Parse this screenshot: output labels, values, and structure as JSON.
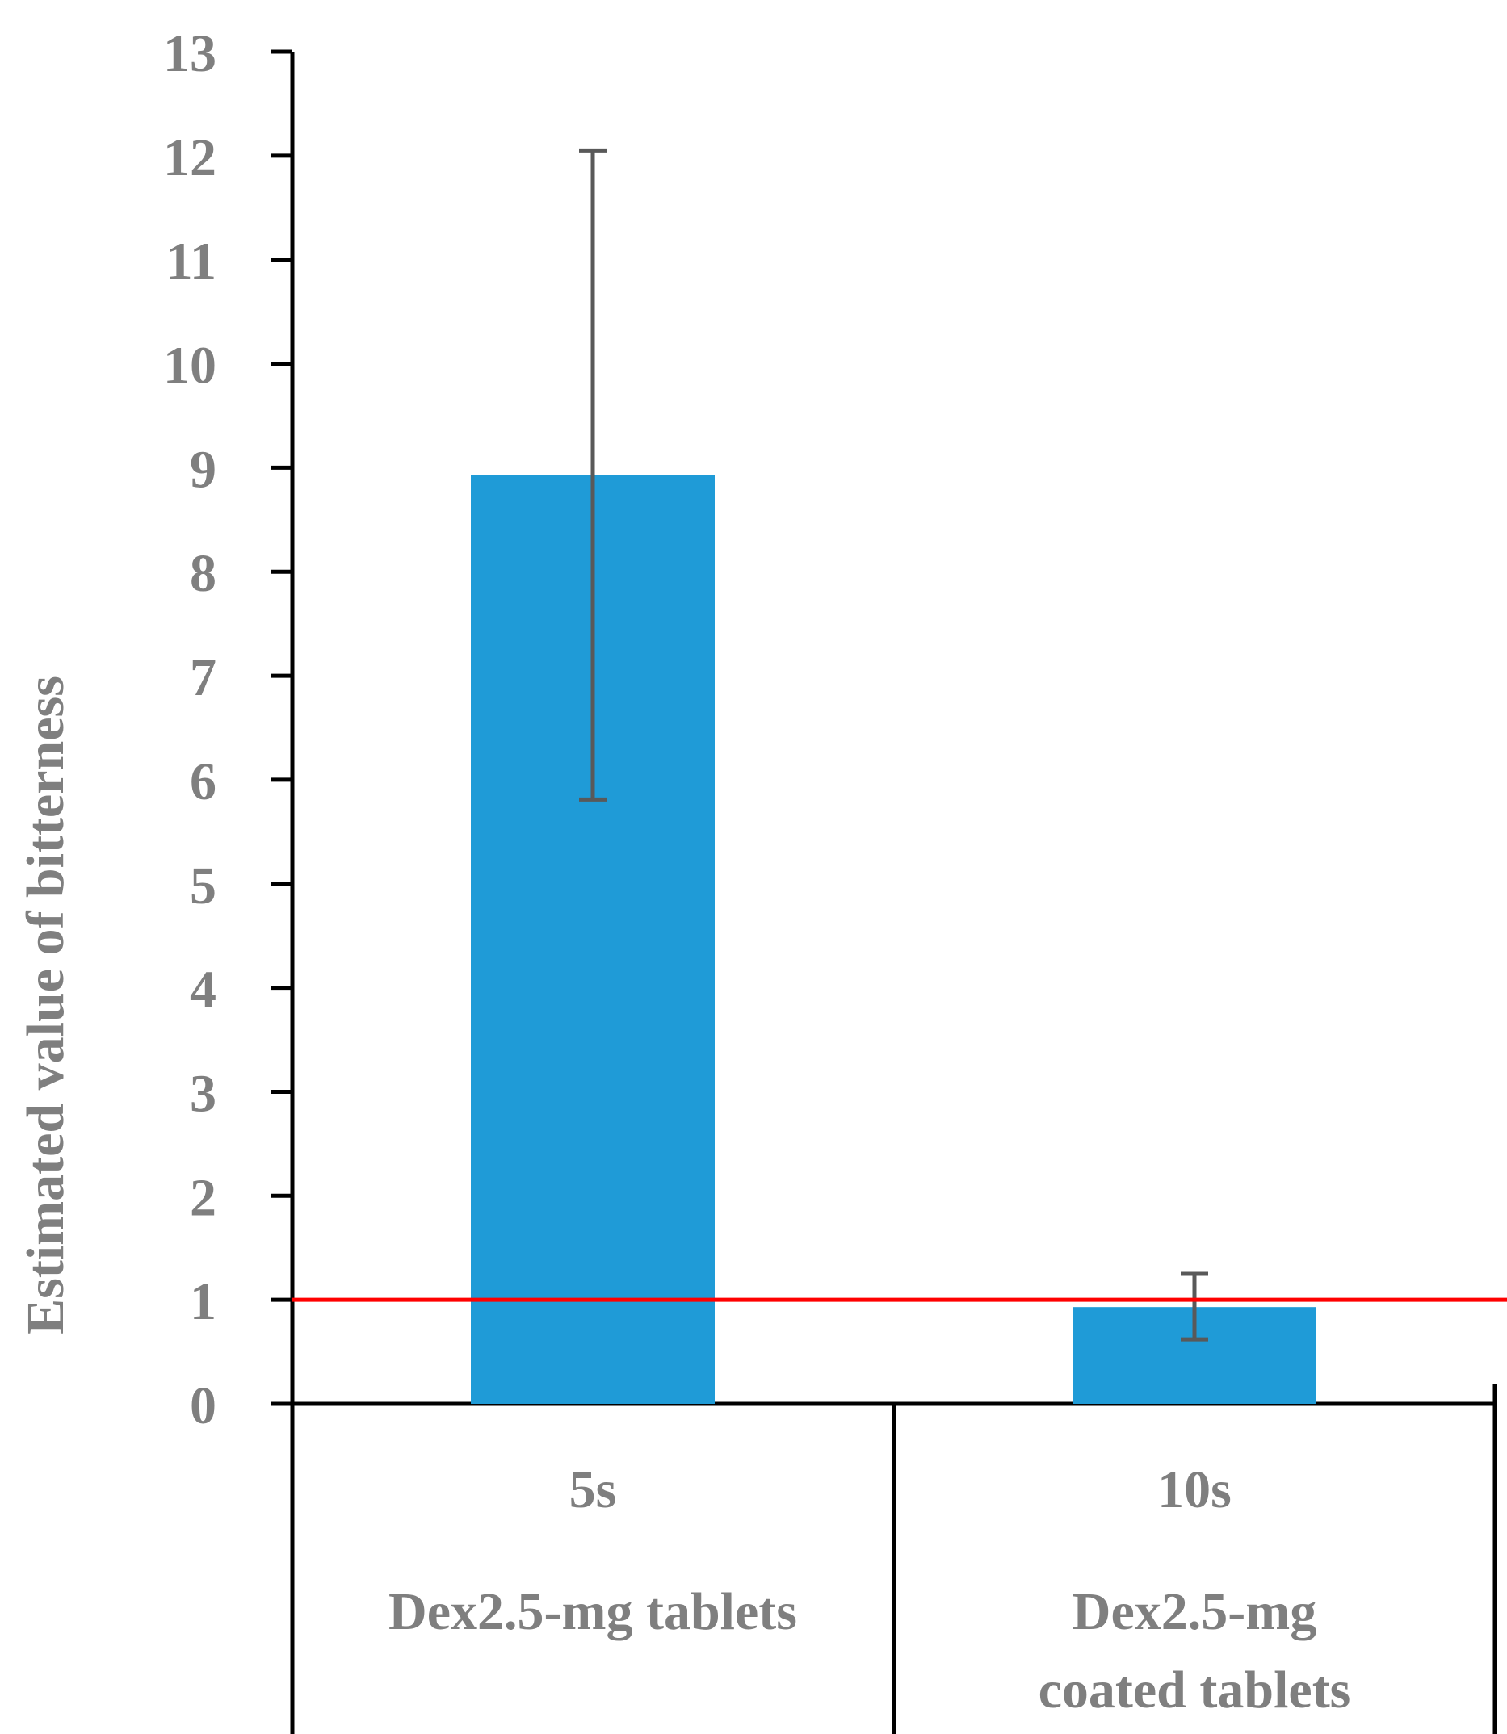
{
  "chart_data": {
    "type": "bar",
    "title": "",
    "ylabel": "Estimated  value  of bitterness",
    "xlabel": "",
    "ylim": [
      0,
      13
    ],
    "yticks": [
      0,
      1,
      2,
      3,
      4,
      5,
      6,
      7,
      8,
      9,
      10,
      11,
      12,
      13
    ],
    "categories": [
      {
        "time": "5s",
        "sample_lines": [
          "Dex2.5-mg tablets"
        ]
      },
      {
        "time": "10s",
        "sample_lines": [
          "Dex2.5-mg",
          "coated tablets"
        ]
      }
    ],
    "values": [
      8.93,
      0.93
    ],
    "error_low": [
      5.81,
      0.62
    ],
    "error_high": [
      12.05,
      1.25
    ],
    "reference_line": {
      "value": 1,
      "color": "#ff0000"
    },
    "colors": {
      "bar": "#1f9bd7",
      "error": "#595959",
      "axis": "#000000",
      "text": "#7f7f7f"
    },
    "grid": false,
    "legend": "none"
  }
}
